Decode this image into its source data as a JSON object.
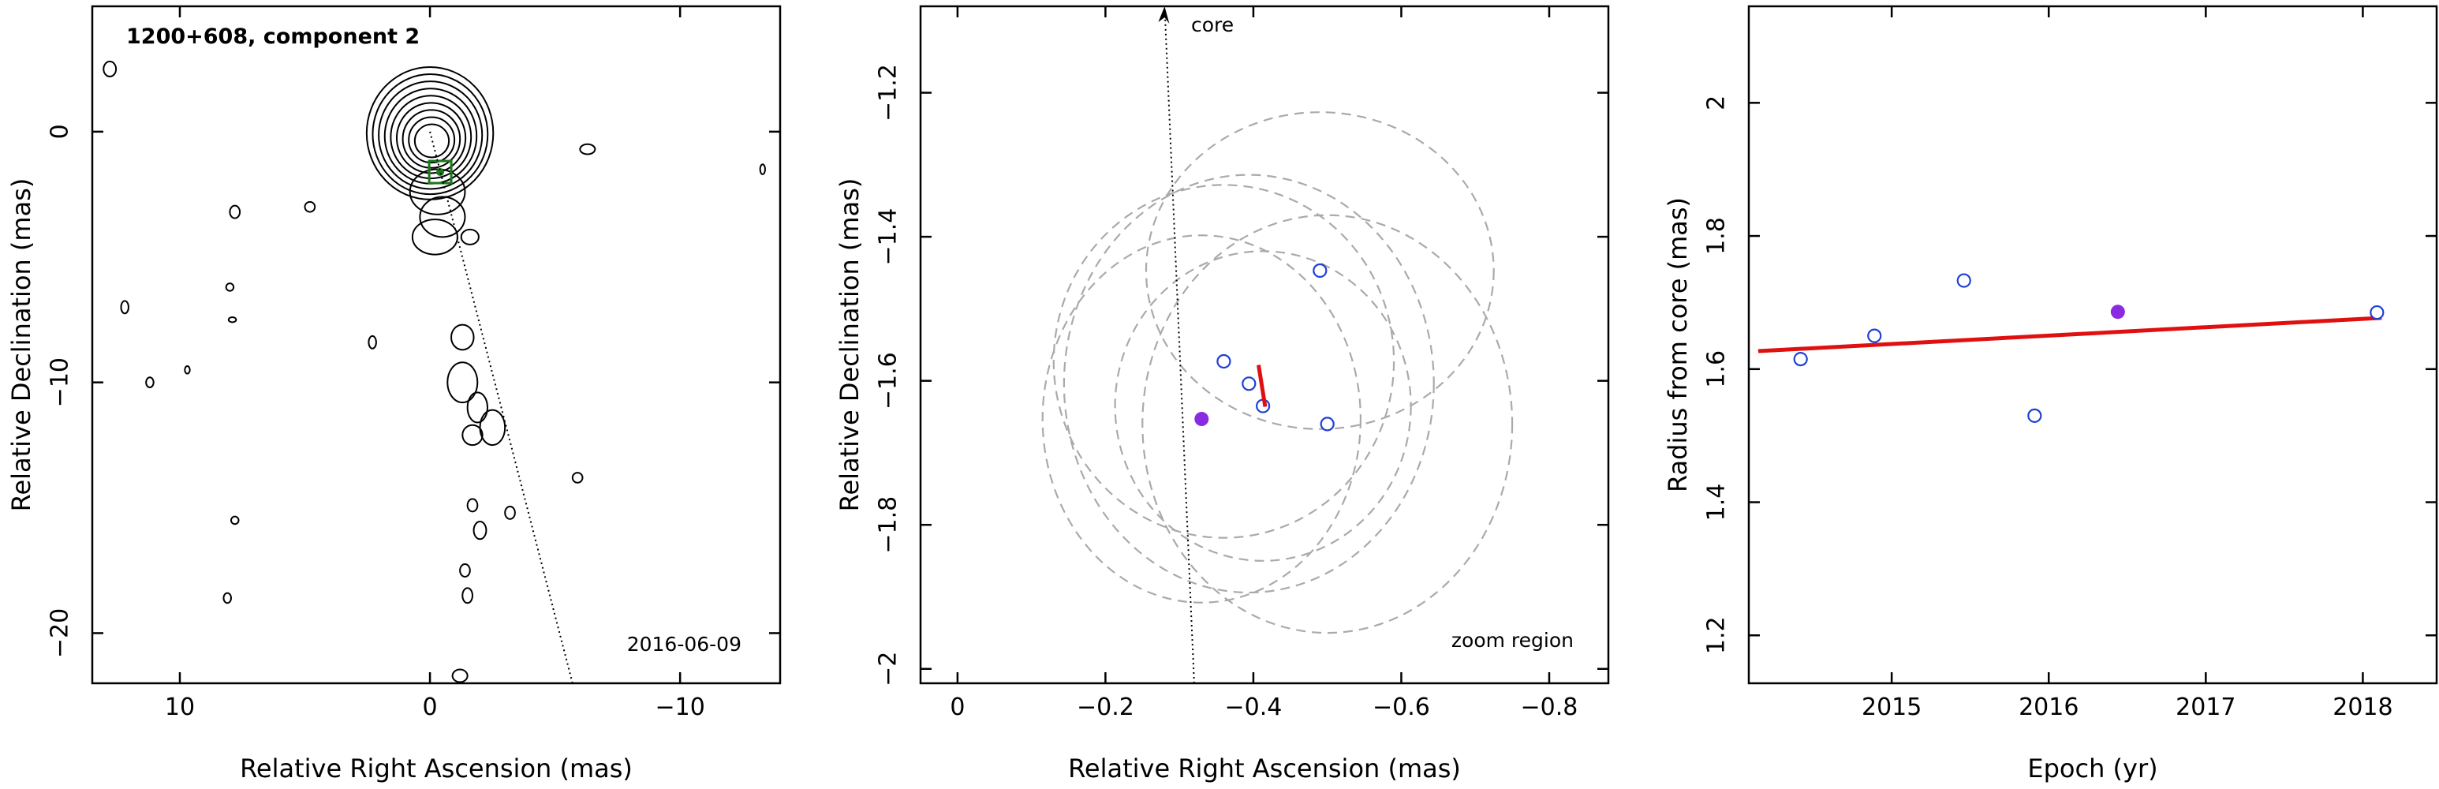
{
  "chart_data": [
    {
      "type": "contour-map",
      "title": "1200+608, component 2",
      "epoch_label": "2016-06-09",
      "xlabel": "Relative Right Ascension (mas)",
      "ylabel": "Relative Declination (mas)",
      "xlim": [
        13.5,
        -14
      ],
      "ylim": [
        -22,
        5
      ],
      "xticks": [
        10,
        0,
        -10
      ],
      "xtick_labels": [
        "10",
        "0",
        "−10"
      ],
      "yticks": [
        0,
        -10,
        -20
      ],
      "ytick_labels": [
        "0",
        "−10",
        "−20"
      ],
      "component_position": {
        "x": -0.41,
        "y": -1.61
      },
      "direction_line": {
        "from": {
          "x": 0,
          "y": 0
        },
        "to": {
          "x": -5.7,
          "y": -22
        }
      },
      "contour_levels": 9,
      "colors": {
        "component_box": "#1a7a1a",
        "contours": "#000000"
      }
    },
    {
      "type": "scatter",
      "xlabel": "Relative Right Ascension (mas)",
      "ylabel": "Relative Declination (mas)",
      "xlim": [
        0.05,
        -0.88
      ],
      "ylim": [
        -2.02,
        -1.08
      ],
      "xticks": [
        0,
        -0.2,
        -0.4,
        -0.6,
        -0.8
      ],
      "xtick_labels": [
        "0",
        "−0.2",
        "−0.4",
        "−0.6",
        "−0.8"
      ],
      "yticks": [
        -1.2,
        -1.4,
        -1.6,
        -1.8,
        -2
      ],
      "ytick_labels": [
        "−1.2",
        "−1.4",
        "−1.6",
        "−1.8",
        "−2"
      ],
      "annotations": [
        "core",
        "zoom region"
      ],
      "open_points": [
        {
          "x": -0.36,
          "y": -1.573
        },
        {
          "x": -0.394,
          "y": -1.604
        },
        {
          "x": -0.413,
          "y": -1.635
        },
        {
          "x": -0.49,
          "y": -1.447
        },
        {
          "x": -0.5,
          "y": -1.66
        }
      ],
      "filled_points": [
        {
          "x": -0.33,
          "y": -1.653
        }
      ],
      "ellipses": [
        {
          "cx": -0.49,
          "cy": -1.447,
          "rx": 0.235,
          "ry": 0.22
        },
        {
          "cx": -0.5,
          "cy": -1.66,
          "rx": 0.25,
          "ry": 0.29
        },
        {
          "cx": -0.394,
          "cy": -1.604,
          "rx": 0.25,
          "ry": 0.29
        },
        {
          "cx": -0.36,
          "cy": -1.573,
          "rx": 0.23,
          "ry": 0.245
        },
        {
          "cx": -0.413,
          "cy": -1.635,
          "rx": 0.2,
          "ry": 0.215
        },
        {
          "cx": -0.33,
          "cy": -1.653,
          "rx": 0.215,
          "ry": 0.255
        }
      ],
      "velocity_segment": {
        "from": {
          "x": -0.407,
          "y": -1.578
        },
        "to": {
          "x": -0.416,
          "y": -1.636
        }
      },
      "direction_line": {
        "from": {
          "x": -0.32,
          "y": -2.02
        },
        "to": {
          "x": -0.28,
          "y": -1.08
        }
      },
      "colors": {
        "open": "#1f3fd6",
        "filled": "#8a2be2",
        "fit": "#e01010",
        "ellipse": "#aaaaaa"
      }
    },
    {
      "type": "scatter",
      "xlabel": "Epoch (yr)",
      "ylabel": "Radius from core (mas)",
      "xlim": [
        2014.09,
        2018.47
      ],
      "ylim": [
        1.128,
        2.145
      ],
      "xticks": [
        2015,
        2016,
        2017,
        2018
      ],
      "xtick_labels": [
        "2015",
        "2016",
        "2017",
        "2018"
      ],
      "yticks": [
        1.2,
        1.4,
        1.6,
        1.8,
        2
      ],
      "ytick_labels": [
        "1.2",
        "1.4",
        "1.6",
        "1.8",
        "2"
      ],
      "open_points": [
        {
          "x": 2014.42,
          "y": 1.615
        },
        {
          "x": 2014.89,
          "y": 1.65
        },
        {
          "x": 2015.46,
          "y": 1.733
        },
        {
          "x": 2015.91,
          "y": 1.53
        },
        {
          "x": 2018.09,
          "y": 1.685
        }
      ],
      "filled_points": [
        {
          "x": 2016.44,
          "y": 1.686
        }
      ],
      "fit_line": {
        "from": {
          "x": 2014.15,
          "y": 1.627
        },
        "to": {
          "x": 2018.12,
          "y": 1.677
        }
      },
      "colors": {
        "open": "#1f3fd6",
        "filled": "#8a2be2",
        "fit": "#e01010"
      }
    }
  ]
}
